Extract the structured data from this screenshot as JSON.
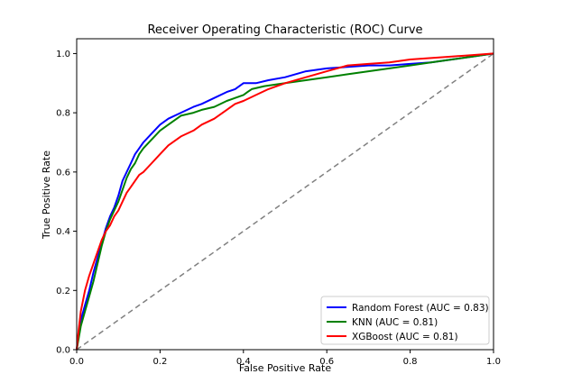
{
  "chart_data": {
    "type": "line",
    "title": "Receiver Operating Characteristic (ROC) Curve",
    "xlabel": "False Positive Rate",
    "ylabel": "True Positive Rate",
    "xlim": [
      0.0,
      1.0
    ],
    "ylim": [
      0.0,
      1.05
    ],
    "xticks": [
      "0.0",
      "0.2",
      "0.4",
      "0.6",
      "0.8",
      "1.0"
    ],
    "yticks": [
      "0.0",
      "0.2",
      "0.4",
      "0.6",
      "0.8",
      "1.0"
    ],
    "xtick_values": [
      0.0,
      0.2,
      0.4,
      0.6,
      0.8,
      1.0
    ],
    "ytick_values": [
      0.0,
      0.2,
      0.4,
      0.6,
      0.8,
      1.0
    ],
    "grid": false,
    "legend_position": "lower-right",
    "series": [
      {
        "name": "Random Forest (AUC = 0.83)",
        "color": "#0000ff",
        "x": [
          0.0,
          0.005,
          0.01,
          0.02,
          0.03,
          0.04,
          0.05,
          0.06,
          0.07,
          0.08,
          0.09,
          0.1,
          0.11,
          0.12,
          0.13,
          0.14,
          0.15,
          0.16,
          0.18,
          0.2,
          0.22,
          0.25,
          0.28,
          0.3,
          0.33,
          0.36,
          0.38,
          0.4,
          0.43,
          0.46,
          0.5,
          0.55,
          0.6,
          0.65,
          0.7,
          0.75,
          0.8,
          0.85,
          0.9,
          0.95,
          1.0
        ],
        "y": [
          0.0,
          0.05,
          0.1,
          0.15,
          0.2,
          0.26,
          0.31,
          0.36,
          0.41,
          0.45,
          0.48,
          0.52,
          0.57,
          0.6,
          0.63,
          0.66,
          0.68,
          0.7,
          0.73,
          0.76,
          0.78,
          0.8,
          0.82,
          0.83,
          0.85,
          0.87,
          0.88,
          0.9,
          0.9,
          0.91,
          0.92,
          0.94,
          0.95,
          0.955,
          0.96,
          0.96,
          0.965,
          0.97,
          0.98,
          0.99,
          1.0
        ]
      },
      {
        "name": "KNN (AUC = 0.81)",
        "color": "#008000",
        "x": [
          0.0,
          0.005,
          0.01,
          0.02,
          0.03,
          0.04,
          0.05,
          0.06,
          0.07,
          0.08,
          0.09,
          0.1,
          0.11,
          0.12,
          0.13,
          0.14,
          0.15,
          0.16,
          0.18,
          0.2,
          0.22,
          0.25,
          0.28,
          0.3,
          0.33,
          0.36,
          0.38,
          0.4,
          0.41,
          0.42,
          0.45,
          0.5,
          0.55,
          0.6,
          0.65,
          0.7,
          0.75,
          0.8,
          0.85,
          0.9,
          0.95,
          1.0
        ],
        "y": [
          0.0,
          0.04,
          0.08,
          0.13,
          0.18,
          0.23,
          0.29,
          0.35,
          0.4,
          0.44,
          0.47,
          0.5,
          0.54,
          0.58,
          0.61,
          0.63,
          0.66,
          0.68,
          0.71,
          0.74,
          0.76,
          0.79,
          0.8,
          0.81,
          0.82,
          0.84,
          0.85,
          0.86,
          0.87,
          0.88,
          0.89,
          0.9,
          0.91,
          0.92,
          0.93,
          0.94,
          0.95,
          0.96,
          0.97,
          0.98,
          0.99,
          1.0
        ]
      },
      {
        "name": "XGBoost (AUC = 0.81)",
        "color": "#ff0000",
        "x": [
          0.0,
          0.005,
          0.01,
          0.02,
          0.03,
          0.04,
          0.05,
          0.06,
          0.07,
          0.08,
          0.09,
          0.1,
          0.11,
          0.12,
          0.13,
          0.14,
          0.15,
          0.16,
          0.18,
          0.2,
          0.22,
          0.25,
          0.28,
          0.3,
          0.33,
          0.36,
          0.38,
          0.4,
          0.43,
          0.46,
          0.5,
          0.55,
          0.6,
          0.65,
          0.7,
          0.75,
          0.8,
          0.85,
          0.9,
          0.95,
          1.0
        ],
        "y": [
          0.0,
          0.07,
          0.13,
          0.2,
          0.25,
          0.29,
          0.33,
          0.37,
          0.4,
          0.42,
          0.45,
          0.47,
          0.5,
          0.53,
          0.55,
          0.57,
          0.59,
          0.6,
          0.63,
          0.66,
          0.69,
          0.72,
          0.74,
          0.76,
          0.78,
          0.81,
          0.83,
          0.84,
          0.86,
          0.88,
          0.9,
          0.92,
          0.94,
          0.96,
          0.965,
          0.97,
          0.98,
          0.985,
          0.99,
          0.995,
          1.0
        ]
      }
    ],
    "reference_line": {
      "x": [
        0.0,
        1.0
      ],
      "y": [
        0.0,
        1.0
      ],
      "color": "#808080",
      "style": "dashed"
    }
  }
}
